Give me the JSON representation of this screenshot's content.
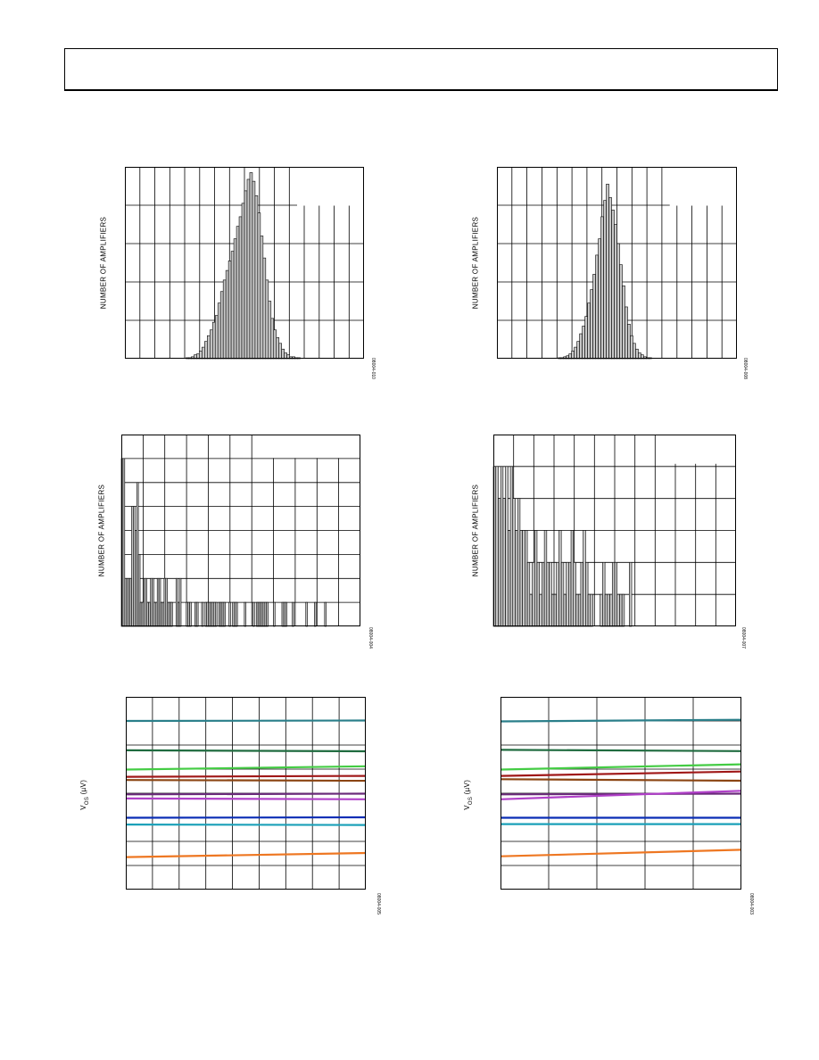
{
  "chart_data": [
    {
      "type": "bar",
      "ylabel": "NUMBER OF AMPLIFIERS",
      "figure_id": "08004-010",
      "values": [
        0,
        0,
        0,
        0,
        0,
        0,
        0,
        0,
        0,
        0,
        0,
        0,
        0,
        0,
        0,
        0,
        0,
        0,
        0,
        0,
        0,
        0,
        0,
        1,
        1,
        2,
        4,
        5,
        8,
        12,
        18,
        24,
        30,
        38,
        45,
        58,
        70,
        82,
        92,
        102,
        112,
        125,
        138,
        148,
        162,
        175,
        187,
        194,
        185,
        170,
        152,
        128,
        105,
        82,
        60,
        42,
        30,
        22,
        16,
        10,
        6,
        4,
        2,
        2,
        1,
        1,
        0,
        0,
        0,
        0,
        0,
        0,
        0,
        0,
        0,
        0,
        0,
        0,
        0,
        0,
        0,
        0,
        0,
        0,
        0,
        0,
        0,
        0,
        0,
        0
      ],
      "ylim": [
        0,
        200
      ],
      "grid": true
    },
    {
      "type": "bar",
      "ylabel": "NUMBER OF AMPLIFIERS",
      "figure_id": "08004-008",
      "values": [
        0,
        0,
        0,
        0,
        0,
        0,
        0,
        0,
        0,
        0,
        0,
        0,
        0,
        0,
        0,
        0,
        0,
        0,
        0,
        0,
        0,
        0,
        0,
        1,
        1,
        2,
        3,
        5,
        8,
        12,
        18,
        26,
        34,
        44,
        58,
        72,
        88,
        108,
        125,
        148,
        165,
        182,
        168,
        155,
        140,
        120,
        98,
        76,
        54,
        36,
        24,
        16,
        10,
        6,
        4,
        2,
        1,
        1,
        0,
        0,
        0,
        0,
        0,
        0,
        0,
        0,
        0,
        0,
        0,
        0,
        0,
        0,
        0,
        0,
        0,
        0,
        0,
        0,
        0,
        0,
        0,
        0,
        0,
        0,
        0,
        0,
        0,
        0,
        0,
        0
      ],
      "ylim": [
        0,
        200
      ],
      "grid": true
    },
    {
      "type": "bar",
      "ylabel": "NUMBER OF AMPLIFIERS",
      "figure_id": "08004-004",
      "values": [
        7,
        7,
        2,
        2,
        2,
        2,
        5,
        5,
        4,
        6,
        3,
        1,
        1,
        2,
        2,
        1,
        1,
        2,
        2,
        1,
        1,
        2,
        2,
        1,
        1,
        2,
        2,
        1,
        1,
        1,
        0,
        0,
        2,
        1,
        2,
        0,
        0,
        0,
        1,
        1,
        1,
        0,
        0,
        1,
        1,
        0,
        0,
        1,
        0,
        1,
        1,
        1,
        1,
        1,
        1,
        1,
        0,
        1,
        1,
        1,
        1,
        0,
        0,
        1,
        0,
        1,
        1,
        1,
        0,
        0,
        0,
        0,
        1,
        0,
        0,
        0,
        0,
        1,
        0,
        1,
        1,
        1,
        1,
        1,
        1,
        1,
        0,
        0,
        0,
        1,
        0,
        0,
        0,
        0,
        1,
        1,
        1,
        0,
        0,
        0,
        1,
        0,
        0,
        0,
        0,
        0,
        0,
        0,
        1,
        0,
        0,
        0,
        0,
        1,
        0,
        0,
        0,
        0,
        0,
        1,
        0,
        0,
        0,
        0,
        0,
        0,
        0,
        0,
        0,
        0,
        0,
        0,
        0,
        0,
        0,
        0,
        0,
        0,
        0,
        0
      ],
      "ylim": [
        0,
        8
      ],
      "grid": true
    },
    {
      "type": "bar",
      "ylabel": "NUMBER OF AMPLIFIERS",
      "figure_id": "08004-007",
      "values": [
        5,
        5,
        4,
        5,
        4,
        5,
        3,
        5,
        4,
        3,
        4,
        3,
        3,
        3,
        2,
        1,
        2,
        3,
        2,
        1,
        2,
        3,
        2,
        2,
        1,
        1,
        2,
        3,
        2,
        1,
        2,
        2,
        3,
        2,
        1,
        1,
        2,
        3,
        2,
        1,
        1,
        0,
        0,
        0,
        1,
        2,
        1,
        1,
        1,
        2,
        2,
        1,
        1,
        1,
        0,
        0,
        2,
        0,
        0,
        0,
        0,
        0,
        0,
        0,
        0,
        0,
        0,
        0,
        0,
        0,
        0,
        0,
        0,
        0,
        0,
        0,
        0,
        0,
        0,
        0,
        0,
        0,
        0,
        0,
        0,
        0,
        0,
        0,
        0,
        0,
        0,
        0,
        0,
        0,
        0,
        0,
        0,
        0,
        0,
        0
      ],
      "ylim": [
        0,
        6
      ],
      "grid": true
    },
    {
      "type": "line",
      "ylabel": "VOS (µV)",
      "ylabel_main": "V",
      "ylabel_sub": "OS",
      "ylabel_unit": " (µV)",
      "figure_id": "08004-005",
      "ylim": [
        0,
        8
      ],
      "x": [
        0,
        1
      ],
      "grid": true,
      "series": [
        {
          "color": "#2a7f8a",
          "values": [
            7.0,
            7.02
          ]
        },
        {
          "color": "#1f6b3f",
          "values": [
            5.78,
            5.74
          ]
        },
        {
          "color": "#44cc44",
          "values": [
            4.98,
            5.12
          ]
        },
        {
          "color": "#a01818",
          "values": [
            4.68,
            4.72
          ]
        },
        {
          "color": "#8b4513",
          "values": [
            4.55,
            4.52
          ]
        },
        {
          "color": "#6a2a7a",
          "values": [
            3.95,
            3.98
          ]
        },
        {
          "color": "#b040c8",
          "values": [
            3.78,
            3.75
          ]
        },
        {
          "color": "#0a2db5",
          "values": [
            2.98,
            3.0
          ]
        },
        {
          "color": "#1aa0b8",
          "values": [
            2.7,
            2.68
          ]
        },
        {
          "color": "#ee7722",
          "values": [
            1.35,
            1.52
          ]
        }
      ]
    },
    {
      "type": "line",
      "ylabel": "VOS (µV)",
      "ylabel_main": "V",
      "ylabel_sub": "OS",
      "ylabel_unit": " (µV)",
      "figure_id": "08004-003",
      "ylim": [
        0,
        8
      ],
      "x": [
        0,
        1
      ],
      "grid": true,
      "series": [
        {
          "color": "#2a7f8a",
          "values": [
            6.98,
            7.05
          ]
        },
        {
          "color": "#1f6b3f",
          "values": [
            5.8,
            5.75
          ]
        },
        {
          "color": "#44cc44",
          "values": [
            4.98,
            5.2
          ]
        },
        {
          "color": "#a01818",
          "values": [
            4.72,
            4.9
          ]
        },
        {
          "color": "#8b4513",
          "values": [
            4.58,
            4.52
          ]
        },
        {
          "color": "#6a2a7a",
          "values": [
            3.95,
            3.98
          ]
        },
        {
          "color": "#b040c8",
          "values": [
            3.75,
            4.1
          ]
        },
        {
          "color": "#0a2db5",
          "values": [
            2.98,
            2.98
          ]
        },
        {
          "color": "#1aa0b8",
          "values": [
            2.72,
            2.72
          ]
        },
        {
          "color": "#ee7722",
          "values": [
            1.38,
            1.65
          ]
        }
      ]
    }
  ]
}
